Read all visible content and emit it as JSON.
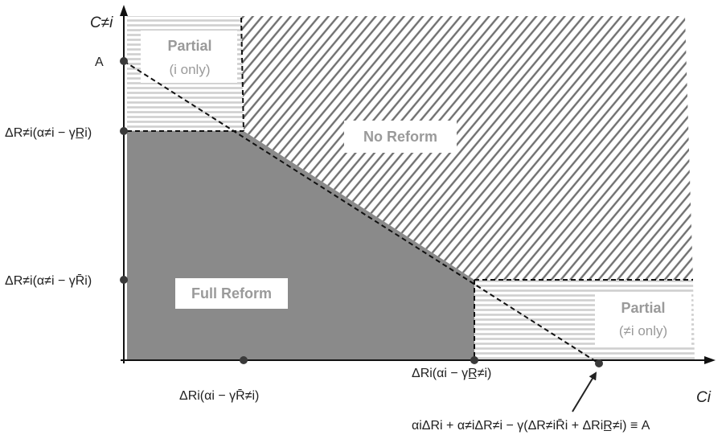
{
  "axes": {
    "y_title": "C≠i",
    "x_title": "Ci"
  },
  "regions": {
    "partial_i": {
      "title": "Partial",
      "subtitle": "(i only)"
    },
    "no_reform": {
      "title": "No Reform"
    },
    "full_reform": {
      "title": "Full Reform"
    },
    "partial_not_i": {
      "title": "Partial",
      "subtitle": "(≠i only)"
    }
  },
  "y_ticks": {
    "a": "A",
    "upper": "ΔR≠i(α≠i − γR̲i)",
    "lower": "ΔR≠i(α≠i − γR̄i)"
  },
  "x_ticks": {
    "left": "ΔRi(αi − γR̄≠i)",
    "right": "ΔRi(αi − γR̲≠i)"
  },
  "annotation": {
    "equation": "αiΔRi + α≠iΔR≠i − γ(ΔR≠iR̄i + ΔRiR̲≠i) ≡ A"
  }
}
